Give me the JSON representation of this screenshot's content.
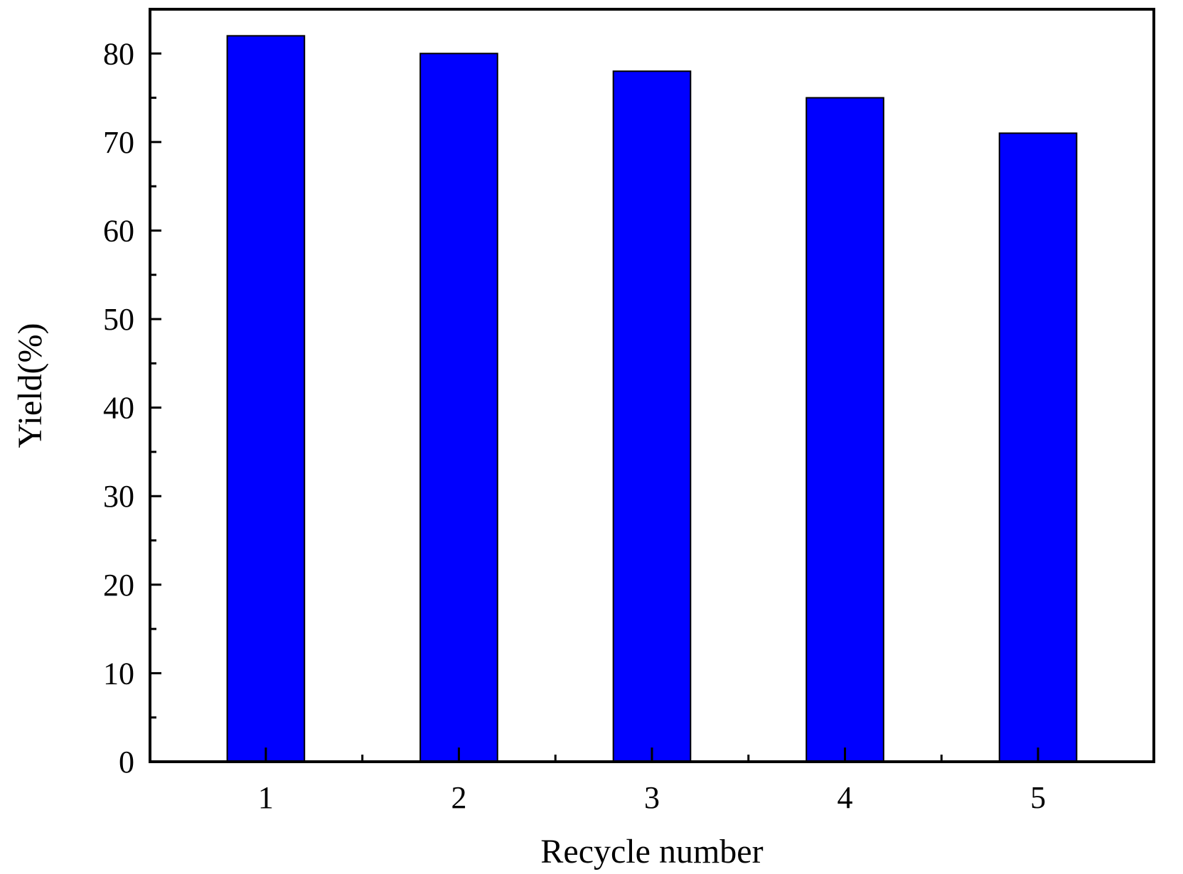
{
  "chart_data": {
    "type": "bar",
    "categories": [
      "1",
      "2",
      "3",
      "4",
      "5"
    ],
    "values": [
      82,
      80,
      78,
      75,
      71
    ],
    "title": "",
    "xlabel": "Recycle number",
    "ylabel": "Yield(%)",
    "ylim": [
      0,
      85
    ],
    "yticks": [
      0,
      10,
      20,
      30,
      40,
      50,
      60,
      70,
      80
    ],
    "grid": false,
    "bar_color": "#0000FF",
    "bar_edge_color": "#000000",
    "axis_color": "#000000"
  }
}
